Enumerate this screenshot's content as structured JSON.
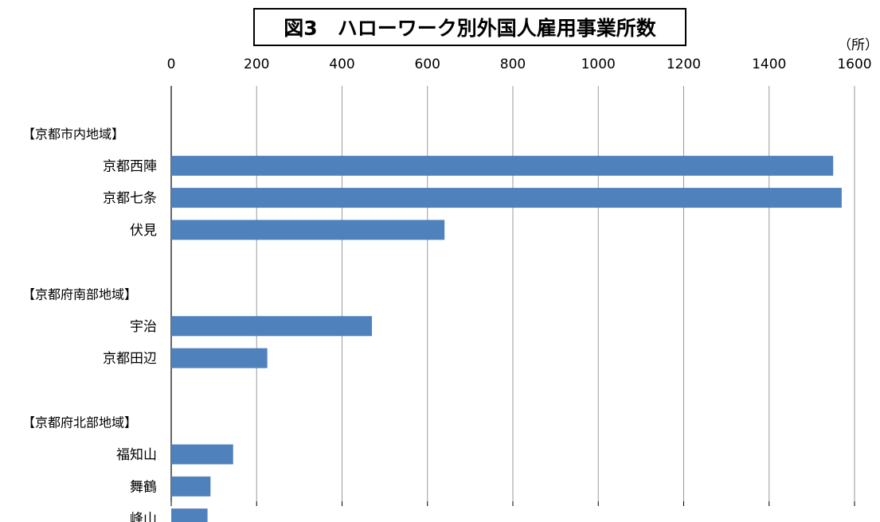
{
  "chart_data": {
    "type": "bar",
    "orientation": "horizontal",
    "title": "図3　ハローワーク別外国人雇用事業所数",
    "unit_label": "（所）",
    "xlim": [
      0,
      1600
    ],
    "x_ticks": [
      "0",
      "200",
      "400",
      "600",
      "800",
      "1000",
      "1200",
      "1400",
      "1600"
    ],
    "grid": "vertical",
    "bar_color": "#4f81bd",
    "rows": [
      {
        "label": "【京都市内地域】",
        "kind": "group"
      },
      {
        "label": "京都西陣",
        "kind": "bar",
        "value": 1550
      },
      {
        "label": "京都七条",
        "kind": "bar",
        "value": 1570
      },
      {
        "label": "伏見",
        "kind": "bar",
        "value": 640
      },
      {
        "label": "",
        "kind": "spacer"
      },
      {
        "label": "【京都府南部地域】",
        "kind": "group"
      },
      {
        "label": "宇治",
        "kind": "bar",
        "value": 470
      },
      {
        "label": "京都田辺",
        "kind": "bar",
        "value": 225
      },
      {
        "label": "",
        "kind": "spacer"
      },
      {
        "label": "【京都府北部地域】",
        "kind": "group"
      },
      {
        "label": "福知山",
        "kind": "bar",
        "value": 145
      },
      {
        "label": "舞鶴",
        "kind": "bar",
        "value": 92
      },
      {
        "label": "峰山",
        "kind": "bar",
        "value": 85
      }
    ]
  }
}
